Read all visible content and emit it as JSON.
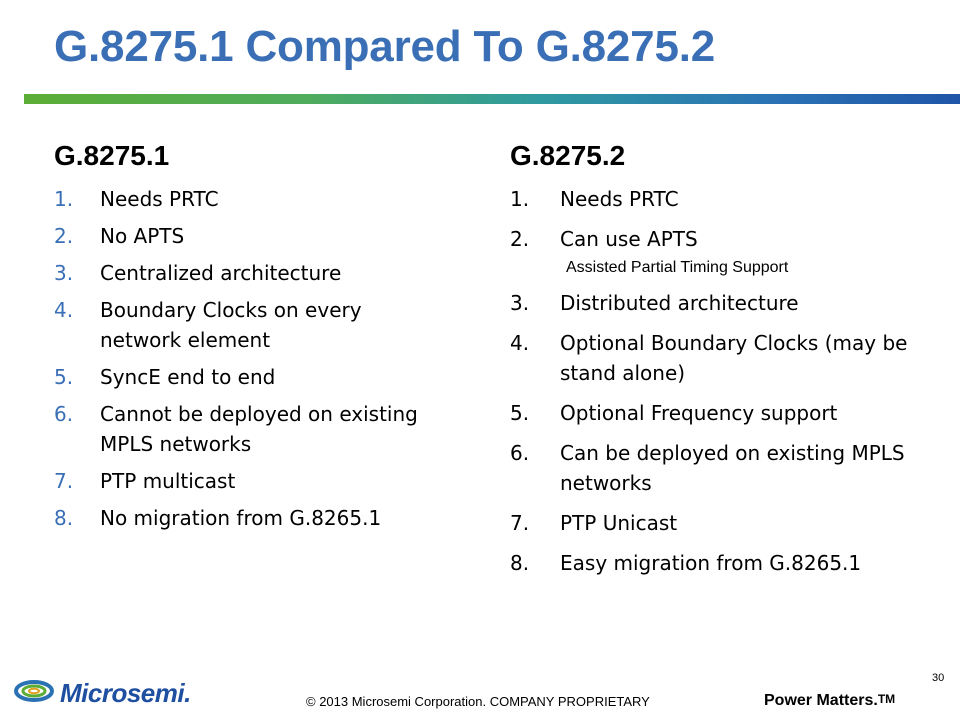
{
  "slide": {
    "title": "G.8275.1 Compared To G.8275.2",
    "page_number": "30"
  },
  "left": {
    "heading": "G.8275.1",
    "items": [
      {
        "num": "1.",
        "text": "Needs PRTC"
      },
      {
        "num": "2.",
        "text": "No APTS"
      },
      {
        "num": "3.",
        "text": "Centralized architecture"
      },
      {
        "num": "4.",
        "text": "Boundary Clocks on every network element"
      },
      {
        "num": "5.",
        "text": "SyncE end to end"
      },
      {
        "num": "6.",
        "text": "Cannot be deployed on existing  MPLS networks"
      },
      {
        "num": "7.",
        "text": "PTP multicast"
      },
      {
        "num": "8.",
        "text": "No migration from G.8265.1"
      }
    ]
  },
  "right": {
    "heading": "G.8275.2",
    "items": [
      {
        "num": "1.",
        "text": "Needs PRTC"
      },
      {
        "num": "2.",
        "text": "Can use APTS"
      },
      {
        "num": "3.",
        "text": "Distributed architecture"
      },
      {
        "num": "4.",
        "text": "Optional Boundary Clocks (may be stand alone)"
      },
      {
        "num": "5.",
        "text": "Optional Frequency support"
      },
      {
        "num": "6.",
        "text": "Can be deployed on existing MPLS networks"
      },
      {
        "num": "7.",
        "text": "PTP Unicast"
      },
      {
        "num": "8.",
        "text": "Easy migration from G.8265.1"
      }
    ],
    "apts_note": "Assisted Partial Timing Support"
  },
  "footer": {
    "logo_text": "Microsemi.",
    "copyright": "© 2013 Microsemi Corporation. COMPANY PROPRIETARY",
    "tagline": "Power Matters.",
    "tagline_tm": "TM"
  },
  "colors": {
    "title": "#3a6fb6",
    "bar_start": "#5cad36",
    "bar_end": "#1f55a8",
    "logo": "#1f4fa0"
  }
}
